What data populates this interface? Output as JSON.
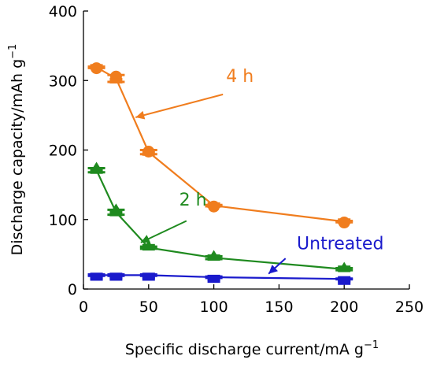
{
  "chart_data": {
    "type": "line",
    "title": "",
    "xlabel": "Specific discharge current/mA g",
    "xlabel_sup": "−1",
    "ylabel": "Discharge capacity/mAh g",
    "ylabel_sup": "−1",
    "xlim": [
      0,
      250
    ],
    "ylim": [
      0,
      400
    ],
    "xticks": [
      "0",
      "50",
      "100",
      "150",
      "200",
      "250"
    ],
    "yticks": [
      "0",
      "100",
      "200",
      "300",
      "400"
    ],
    "grid": false,
    "legend": "none",
    "series": [
      {
        "name": "4 h",
        "color": "#F07D1E",
        "x": [
          10,
          25,
          50,
          100,
          200
        ],
        "charge_marker": [
          320,
          308,
          200,
          121,
          98
        ],
        "discharge_marker": [
          318,
          298,
          194,
          119,
          96
        ]
      },
      {
        "name": "2 h",
        "color": "#1F8A1F",
        "x": [
          10,
          25,
          50,
          100,
          200
        ],
        "charge_marker": [
          174,
          114,
          61,
          47,
          30
        ],
        "discharge_marker": [
          168,
          107,
          58,
          43,
          27
        ]
      },
      {
        "name": "Untreated",
        "color": "#1A1ACC",
        "x": [
          10,
          25,
          50,
          100,
          200
        ],
        "charge_marker": [
          21,
          21,
          21,
          18,
          15
        ],
        "discharge_marker": [
          19,
          19,
          19,
          16,
          14
        ]
      }
    ],
    "annotations": [
      {
        "text": "4 h",
        "series": "4 h",
        "color": "#F07D1E",
        "label_at": [
          120,
          298
        ],
        "arrow_from": [
          107,
          280
        ],
        "arrow_to": [
          40,
          247
        ]
      },
      {
        "text": "2 h",
        "series": "2 h",
        "color": "#1F8A1F",
        "label_at": [
          84,
          120
        ],
        "arrow_from": [
          79,
          98
        ],
        "arrow_to": [
          44,
          67
        ]
      },
      {
        "text": "Untreated",
        "series": "Untreated",
        "color": "#1A1ACC",
        "label_at": [
          197,
          57
        ],
        "arrow_from": [
          155,
          44
        ],
        "arrow_to": [
          142,
          22
        ]
      }
    ]
  }
}
